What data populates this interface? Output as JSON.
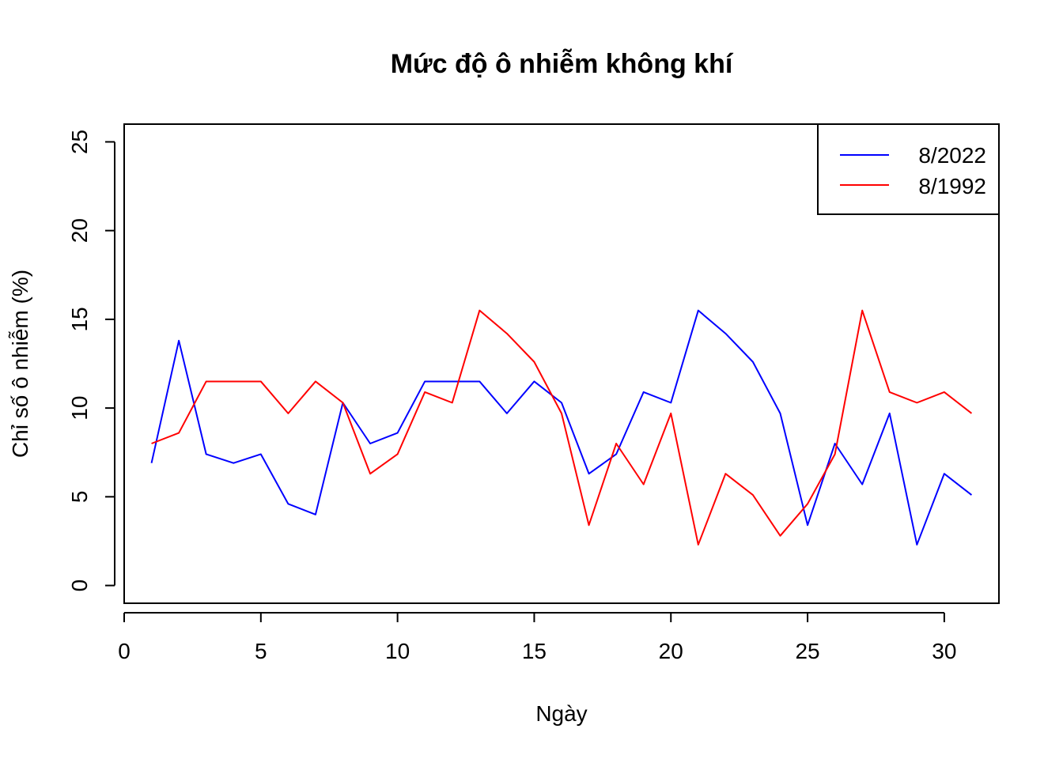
{
  "chart_data": {
    "type": "line",
    "title": "Mức độ ô nhiễm không khí",
    "xlabel": "Ngày",
    "ylabel": "Chỉ số ô nhiễm (%)",
    "xlim": [
      0,
      32
    ],
    "ylim": [
      -1,
      26
    ],
    "xticks": [
      0,
      5,
      10,
      15,
      20,
      25,
      30
    ],
    "yticks": [
      0,
      5,
      10,
      15,
      20,
      25
    ],
    "grid": false,
    "legend_position": "top-right",
    "x": [
      1,
      2,
      3,
      4,
      5,
      6,
      7,
      8,
      9,
      10,
      11,
      12,
      13,
      14,
      15,
      16,
      17,
      18,
      19,
      20,
      21,
      22,
      23,
      24,
      25,
      26,
      27,
      28,
      29,
      30,
      31
    ],
    "series": [
      {
        "name": "8/2022",
        "color": "#0000ff",
        "values": [
          6.9,
          13.8,
          7.4,
          6.9,
          7.4,
          4.6,
          4.0,
          10.3,
          8.0,
          8.6,
          11.5,
          11.5,
          11.5,
          9.7,
          11.5,
          10.3,
          6.3,
          7.4,
          10.9,
          10.3,
          15.5,
          14.2,
          12.6,
          9.7,
          3.4,
          8.0,
          5.7,
          9.7,
          2.3,
          6.3,
          5.1
        ]
      },
      {
        "name": "8/1992",
        "color": "#ff0000",
        "values": [
          8.0,
          8.6,
          11.5,
          11.5,
          11.5,
          9.7,
          11.5,
          10.3,
          6.3,
          7.4,
          10.9,
          10.3,
          15.5,
          14.2,
          12.6,
          9.7,
          3.4,
          8.0,
          5.7,
          9.7,
          2.3,
          6.3,
          5.1,
          2.8,
          4.6,
          7.4,
          15.5,
          10.9,
          10.3,
          10.9,
          9.7
        ]
      }
    ]
  }
}
